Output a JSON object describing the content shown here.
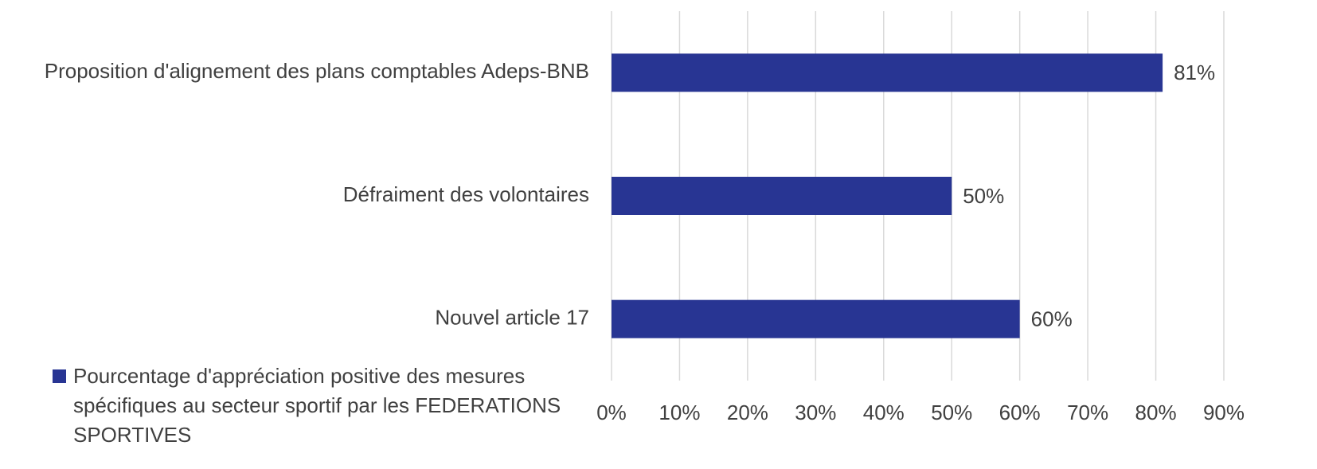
{
  "chart_data": {
    "type": "bar",
    "orientation": "horizontal",
    "categories": [
      "Proposition d'alignement des plans comptables Adeps-BNB",
      "Défraiment des volontaires",
      "Nouvel article 17"
    ],
    "series": [
      {
        "name": "Pourcentage d'appréciation positive des mesures spécifiques au secteur sportif par les FEDERATIONS SPORTIVES",
        "color": "#283593",
        "values": [
          81,
          50,
          60
        ],
        "value_labels": [
          "81%",
          "50%",
          "60%"
        ]
      }
    ],
    "xlim": [
      0,
      90
    ],
    "xticks": [
      {
        "value": 0,
        "label": "0%"
      },
      {
        "value": 10,
        "label": "10%"
      },
      {
        "value": 20,
        "label": "20%"
      },
      {
        "value": 30,
        "label": "30%"
      },
      {
        "value": 40,
        "label": "40%"
      },
      {
        "value": 50,
        "label": "50%"
      },
      {
        "value": 60,
        "label": "60%"
      },
      {
        "value": 70,
        "label": "70%"
      },
      {
        "value": 80,
        "label": "80%"
      },
      {
        "value": 90,
        "label": "90%"
      }
    ],
    "grid": true,
    "legend": "bottom-left"
  }
}
